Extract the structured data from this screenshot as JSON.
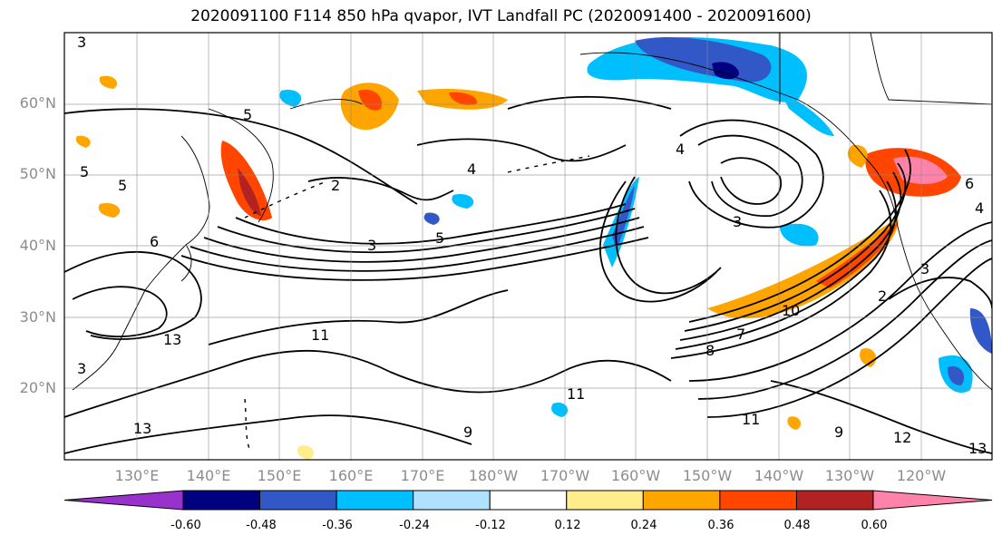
{
  "title": "2020091100 F114 850 hPa qvapor, IVT Landfall PC (2020091400 - 2020091600)",
  "lat_ticks": [
    "60°N",
    "50°N",
    "40°N",
    "30°N",
    "20°N"
  ],
  "lon_ticks": [
    "130°E",
    "140°E",
    "150°E",
    "160°E",
    "170°E",
    "180°W",
    "170°W",
    "160°W",
    "150°W",
    "140°W",
    "130°W",
    "120°W"
  ],
  "colorbar": {
    "colors": [
      "#9932cc",
      "#000080",
      "#3258c8",
      "#00bfff",
      "#b0e2ff",
      "#ffffff",
      "#ffec8b",
      "#ffa500",
      "#ff4500",
      "#b22222",
      "#ff82ab"
    ],
    "labels": [
      "-0.60",
      "-0.48",
      "-0.36",
      "-0.24",
      "-0.12",
      "0.12",
      "0.24",
      "0.36",
      "0.48",
      "0.60"
    ]
  },
  "contour_labels": [
    "3",
    "5",
    "4",
    "2",
    "4",
    "3",
    "5",
    "6",
    "3",
    "3",
    "5",
    "2",
    "6",
    "8",
    "7",
    "10",
    "11",
    "13",
    "13",
    "11",
    "12",
    "13",
    "9",
    "11",
    "9",
    "3",
    "5",
    "4"
  ]
}
